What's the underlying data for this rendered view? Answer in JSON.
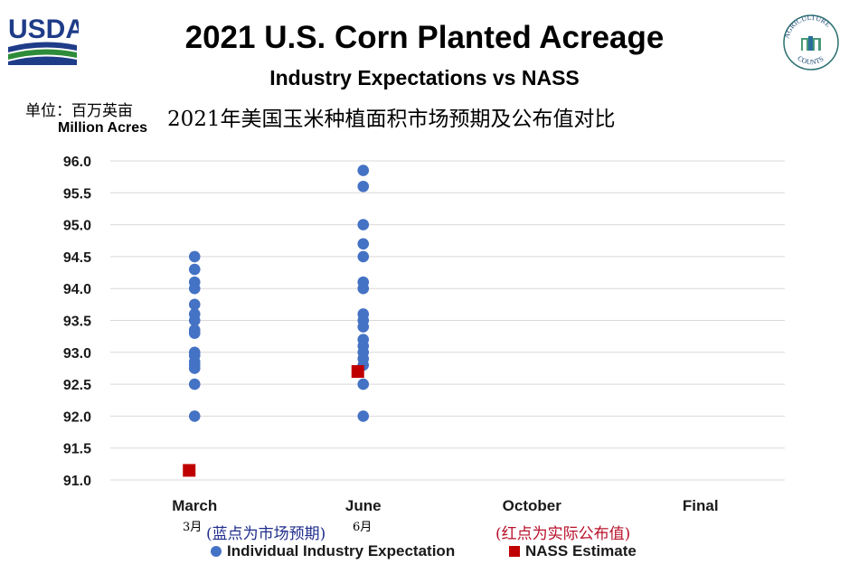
{
  "header": {
    "title": "2021 U.S. Corn Planted Acreage",
    "subtitle": "Industry Expectations vs NASS",
    "cn_title": "2021年美国玉米种植面积市场预期及公布值对比",
    "unit_cn": "单位：百万英亩",
    "unit_en": "Million Acres"
  },
  "logos": {
    "usda_text": "USDA",
    "ag_counts_top": "AGRICULTURE",
    "ag_counts_bottom": "COUNTS"
  },
  "annotations": {
    "march_cn": "3月",
    "june_cn": "6月",
    "blue_note": "(蓝点为市场预期)",
    "red_note": "(红点为实际公布值)"
  },
  "legend": {
    "industry": "Individual Industry Expectation",
    "nass": "NASS Estimate"
  },
  "colors": {
    "industry": "#4472c4",
    "nass": "#c00000",
    "grid": "#d9d9d9"
  },
  "chart_data": {
    "type": "scatter",
    "categories": [
      "March",
      "June",
      "October",
      "Final"
    ],
    "ylim": [
      91.0,
      96.0
    ],
    "yticks": [
      "91.0",
      "91.5",
      "92.0",
      "92.5",
      "93.0",
      "93.5",
      "94.0",
      "94.5",
      "95.0",
      "95.5",
      "96.0"
    ],
    "grid": true,
    "legend_position": "bottom",
    "series": [
      {
        "name": "Individual Industry Expectation",
        "marker": "circle",
        "points": [
          {
            "x": "March",
            "y": 94.5
          },
          {
            "x": "March",
            "y": 94.3
          },
          {
            "x": "March",
            "y": 94.1
          },
          {
            "x": "March",
            "y": 94.0
          },
          {
            "x": "March",
            "y": 93.75
          },
          {
            "x": "March",
            "y": 93.6
          },
          {
            "x": "March",
            "y": 93.5
          },
          {
            "x": "March",
            "y": 93.35
          },
          {
            "x": "March",
            "y": 93.3
          },
          {
            "x": "March",
            "y": 93.0
          },
          {
            "x": "March",
            "y": 92.95
          },
          {
            "x": "March",
            "y": 92.85
          },
          {
            "x": "March",
            "y": 92.8
          },
          {
            "x": "March",
            "y": 92.75
          },
          {
            "x": "March",
            "y": 92.5
          },
          {
            "x": "March",
            "y": 92.0
          },
          {
            "x": "June",
            "y": 95.85
          },
          {
            "x": "June",
            "y": 95.6
          },
          {
            "x": "June",
            "y": 95.0
          },
          {
            "x": "June",
            "y": 94.7
          },
          {
            "x": "June",
            "y": 94.5
          },
          {
            "x": "June",
            "y": 94.1
          },
          {
            "x": "June",
            "y": 94.0
          },
          {
            "x": "June",
            "y": 93.6
          },
          {
            "x": "June",
            "y": 93.5
          },
          {
            "x": "June",
            "y": 93.4
          },
          {
            "x": "June",
            "y": 93.2
          },
          {
            "x": "June",
            "y": 93.1
          },
          {
            "x": "June",
            "y": 93.0
          },
          {
            "x": "June",
            "y": 92.9
          },
          {
            "x": "June",
            "y": 92.8
          },
          {
            "x": "June",
            "y": 92.5
          },
          {
            "x": "June",
            "y": 92.0
          }
        ]
      },
      {
        "name": "NASS Estimate",
        "marker": "square",
        "points": [
          {
            "x": "March",
            "y": 91.15
          },
          {
            "x": "June",
            "y": 92.7
          }
        ]
      }
    ]
  }
}
